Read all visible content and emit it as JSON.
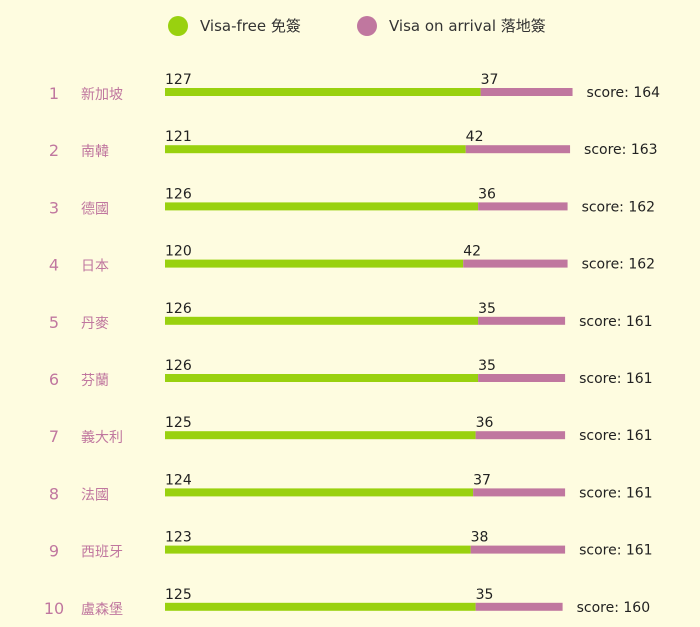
{
  "colors": {
    "background": "#fefce0",
    "visa_free": "#99d10f",
    "visa_on_arrival": "#c0779f",
    "rank_text": "#c0779f"
  },
  "legend": [
    {
      "label": "Visa-free 免簽",
      "color": "#99d10f"
    },
    {
      "label": "Visa on arrival 落地簽",
      "color": "#c0779f"
    }
  ],
  "score_prefix": "score: ",
  "chart_data": {
    "type": "bar",
    "orientation": "horizontal",
    "stacked": true,
    "categories": [
      "新加坡",
      "南韓",
      "德國",
      "日本",
      "丹麥",
      "芬蘭",
      "義大利",
      "法國",
      "西班牙",
      "盧森堡"
    ],
    "ranks": [
      "1",
      "2",
      "3",
      "4",
      "5",
      "6",
      "7",
      "8",
      "9",
      "10"
    ],
    "series": [
      {
        "name": "Visa-free 免簽",
        "values": [
          127,
          121,
          126,
          120,
          126,
          126,
          125,
          124,
          123,
          125
        ]
      },
      {
        "name": "Visa on arrival 落地簽",
        "values": [
          37,
          42,
          36,
          42,
          35,
          35,
          36,
          37,
          38,
          35
        ]
      }
    ],
    "scores": [
      164,
      163,
      162,
      162,
      161,
      161,
      161,
      161,
      161,
      160
    ],
    "legend_position": "top",
    "grid": false
  }
}
